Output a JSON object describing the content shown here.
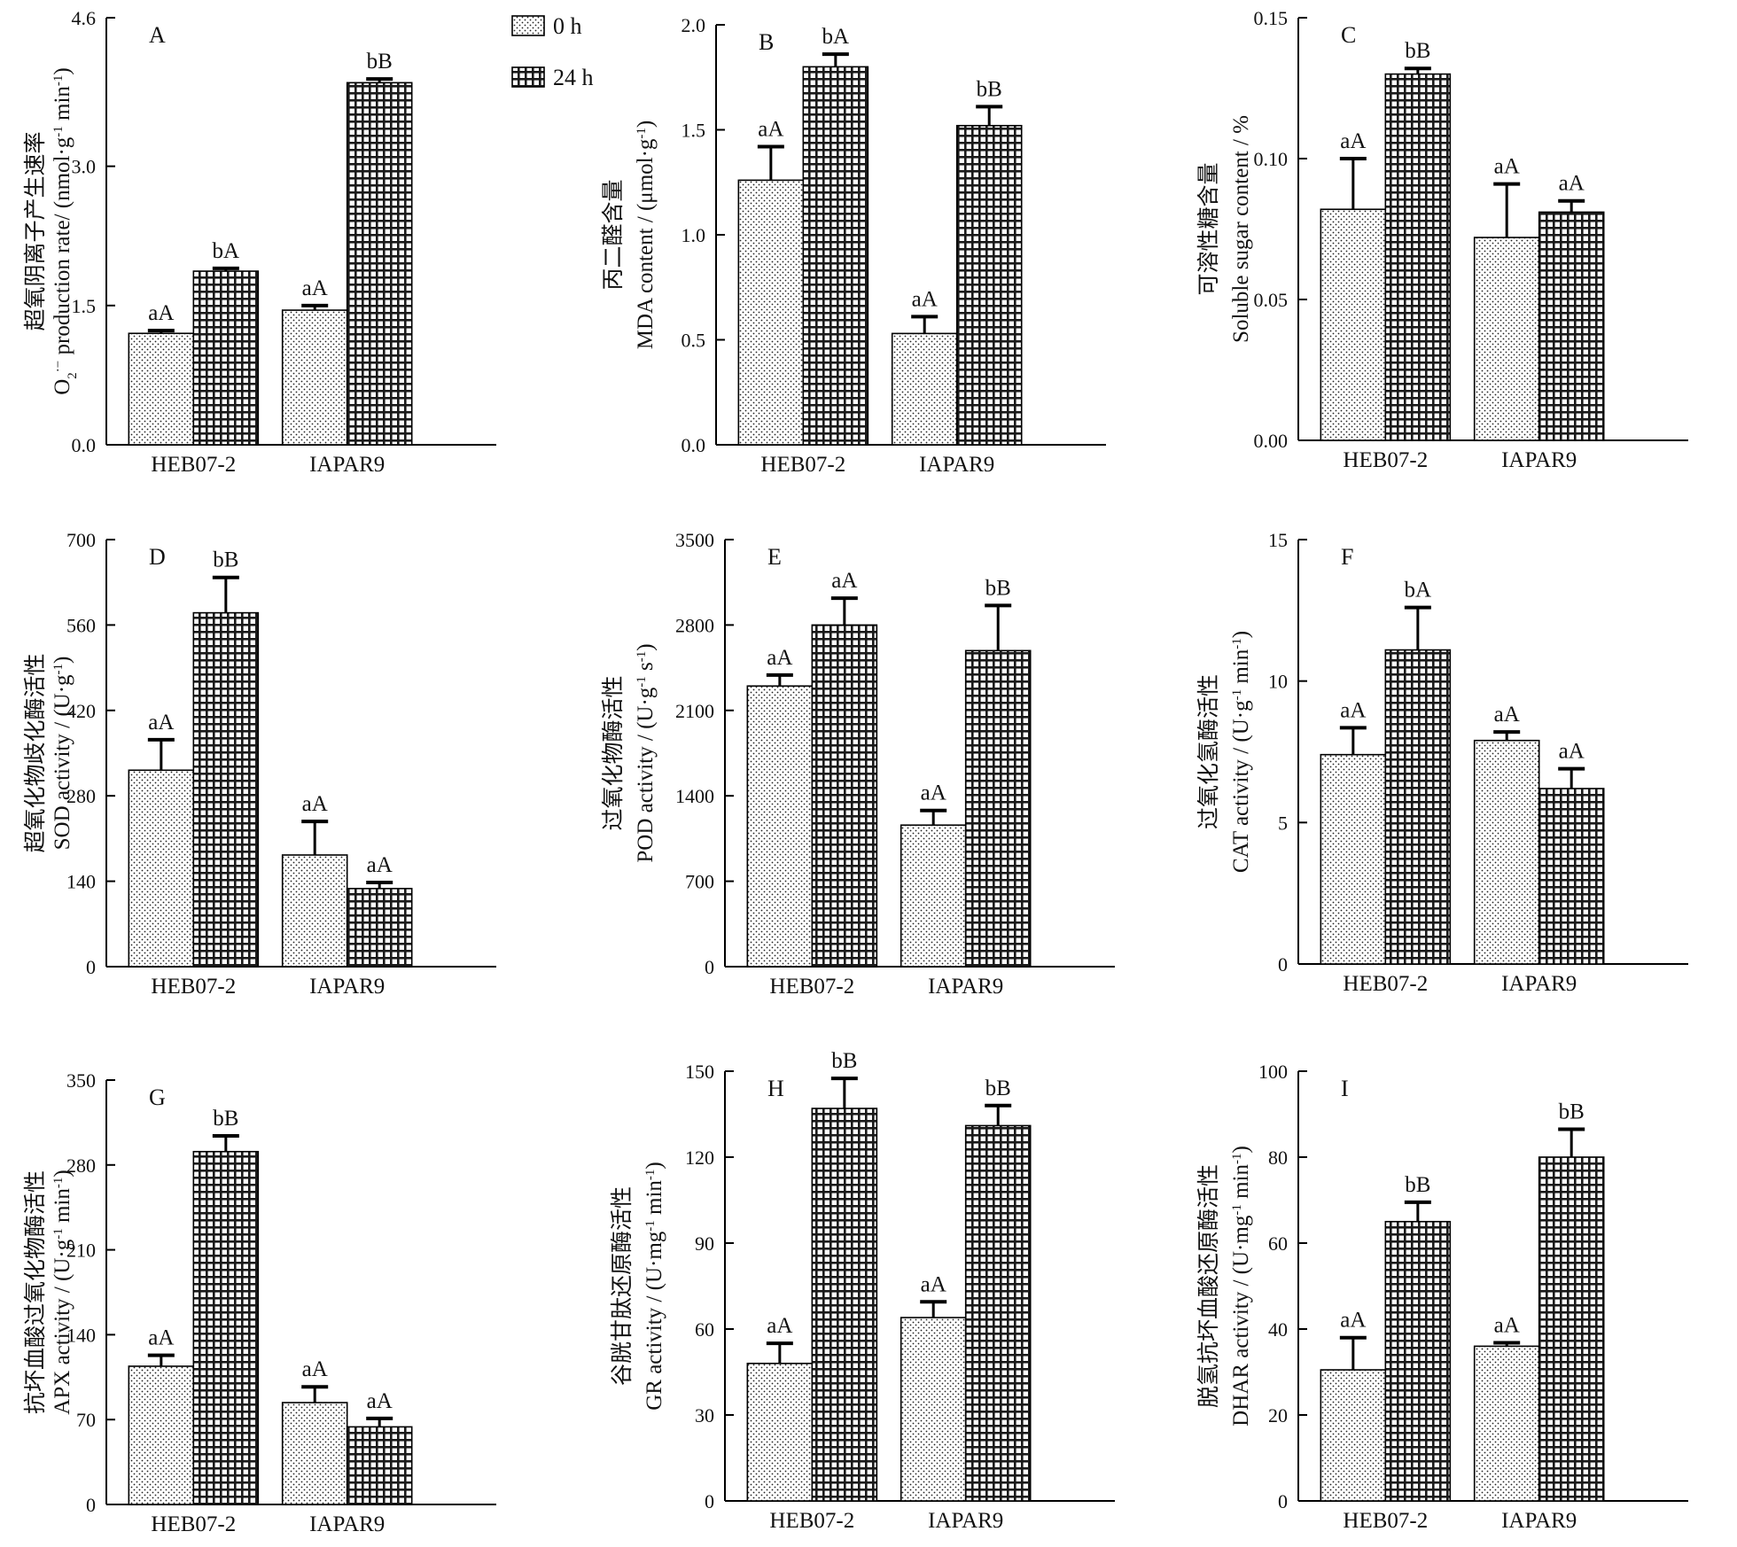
{
  "legend": {
    "items": [
      {
        "label": "0 h",
        "pattern": "dots"
      },
      {
        "label": "24 h",
        "pattern": "grid"
      }
    ]
  },
  "chart_data": [
    {
      "type": "bar",
      "panel_letter": "A",
      "ylabel_cn": "超氧阴离子产生速率",
      "ylabel_en_parts": [
        {
          "t": "O"
        },
        {
          "t": "2",
          "s": "sub"
        },
        {
          "t": "·−",
          "s": "sup"
        },
        {
          "t": " production rate/ (nmol·g"
        },
        {
          "t": "-1",
          "s": "sup"
        },
        {
          "t": " min"
        },
        {
          "t": "-1",
          "s": "sup"
        },
        {
          "t": ")"
        }
      ],
      "ylim": [
        0,
        4.6
      ],
      "ticks": [
        0,
        1.5,
        3.0,
        4.6
      ],
      "tick_labels": [
        "0.0",
        "1.5",
        "3.0",
        "4.6"
      ],
      "categories": [
        "HEB07-2",
        "IAPAR9"
      ],
      "series": [
        {
          "name": "0 h",
          "values": [
            1.2,
            1.45
          ],
          "errors": [
            0.03,
            0.05
          ],
          "letters": [
            "aA",
            "aA"
          ]
        },
        {
          "name": "24 h",
          "values": [
            1.87,
            3.9
          ],
          "errors": [
            0.03,
            0.04
          ],
          "letters": [
            "bA",
            "bB"
          ]
        }
      ]
    },
    {
      "type": "bar",
      "panel_letter": "B",
      "ylabel_cn": "丙二醛含量",
      "ylabel_en_parts": [
        {
          "t": "MDA content / (μmol·g"
        },
        {
          "t": "-1",
          "s": "sup"
        },
        {
          "t": ")"
        }
      ],
      "ylim": [
        0,
        2.0
      ],
      "ticks": [
        0,
        0.5,
        1.0,
        1.5,
        2.0
      ],
      "tick_labels": [
        "0.0",
        "0.5",
        "1.0",
        "1.5",
        "2.0"
      ],
      "categories": [
        "HEB07-2",
        "IAPAR9"
      ],
      "series": [
        {
          "name": "0 h",
          "values": [
            1.26,
            0.53
          ],
          "errors": [
            0.16,
            0.08
          ],
          "letters": [
            "aA",
            "aA"
          ]
        },
        {
          "name": "24 h",
          "values": [
            1.8,
            1.52
          ],
          "errors": [
            0.06,
            0.09
          ],
          "letters": [
            "bA",
            "bB"
          ]
        }
      ]
    },
    {
      "type": "bar",
      "panel_letter": "C",
      "ylabel_cn": "可溶性糖含量",
      "ylabel_en_parts": [
        {
          "t": "Soluble sugar content  / %"
        }
      ],
      "ylim": [
        0,
        0.15
      ],
      "ticks": [
        0,
        0.05,
        0.1,
        0.15
      ],
      "tick_labels": [
        "0.00",
        "0.05",
        "0.10",
        "0.15"
      ],
      "categories": [
        "HEB07-2",
        "IAPAR9"
      ],
      "series": [
        {
          "name": "0 h",
          "values": [
            0.082,
            0.072
          ],
          "errors": [
            0.018,
            0.019
          ],
          "letters": [
            "aA",
            "aA"
          ]
        },
        {
          "name": "24 h",
          "values": [
            0.13,
            0.081
          ],
          "errors": [
            0.002,
            0.004
          ],
          "letters": [
            "bB",
            "aA"
          ]
        }
      ]
    },
    {
      "type": "bar",
      "panel_letter": "D",
      "ylabel_cn": "超氧化物歧化酶活性",
      "ylabel_en_parts": [
        {
          "t": "SOD activity / (U·g"
        },
        {
          "t": "-1",
          "s": "sup"
        },
        {
          "t": ")"
        }
      ],
      "ylim": [
        0,
        700
      ],
      "ticks": [
        0,
        140,
        280,
        420,
        560,
        700
      ],
      "tick_labels": [
        "0",
        "140",
        "280",
        "420",
        "560",
        "700"
      ],
      "categories": [
        "HEB07-2",
        "IAPAR9"
      ],
      "series": [
        {
          "name": "0 h",
          "values": [
            322,
            183
          ],
          "errors": [
            50,
            55
          ],
          "letters": [
            "aA",
            "aA"
          ]
        },
        {
          "name": "24 h",
          "values": [
            580,
            128
          ],
          "errors": [
            58,
            10
          ],
          "letters": [
            "bB",
            "aA"
          ]
        }
      ]
    },
    {
      "type": "bar",
      "panel_letter": "E",
      "ylabel_cn": "过氧化物酶活性",
      "ylabel_en_parts": [
        {
          "t": "POD activity / (U·g"
        },
        {
          "t": "-1",
          "s": "sup"
        },
        {
          "t": " s"
        },
        {
          "t": "-1",
          "s": "sup"
        },
        {
          "t": ")"
        }
      ],
      "ylim": [
        0,
        3500
      ],
      "ticks": [
        0,
        700,
        1400,
        2100,
        2800,
        3500
      ],
      "tick_labels": [
        "0",
        "700",
        "1400",
        "2100",
        "2800",
        "3500"
      ],
      "categories": [
        "HEB07-2",
        "IAPAR9"
      ],
      "series": [
        {
          "name": "0 h",
          "values": [
            2300,
            1160
          ],
          "errors": [
            90,
            120
          ],
          "letters": [
            "aA",
            "aA"
          ]
        },
        {
          "name": "24 h",
          "values": [
            2800,
            2590
          ],
          "errors": [
            220,
            370
          ],
          "letters": [
            "aA",
            "bB"
          ]
        }
      ]
    },
    {
      "type": "bar",
      "panel_letter": "F",
      "ylabel_cn": "过氧化氢酶活性",
      "ylabel_en_parts": [
        {
          "t": "CAT activity / (U·g"
        },
        {
          "t": "-1",
          "s": "sup"
        },
        {
          "t": " min"
        },
        {
          "t": "-1",
          "s": "sup"
        },
        {
          "t": ")"
        }
      ],
      "ylim": [
        0,
        15
      ],
      "ticks": [
        0,
        5,
        10,
        15
      ],
      "tick_labels": [
        "0",
        "5",
        "10",
        "15"
      ],
      "categories": [
        "HEB07-2",
        "IAPAR9"
      ],
      "series": [
        {
          "name": "0 h",
          "values": [
            7.4,
            7.9
          ],
          "errors": [
            0.95,
            0.3
          ],
          "letters": [
            "aA",
            "aA"
          ]
        },
        {
          "name": "24 h",
          "values": [
            11.1,
            6.2
          ],
          "errors": [
            1.5,
            0.7
          ],
          "letters": [
            "bA",
            "aA"
          ]
        }
      ]
    },
    {
      "type": "bar",
      "panel_letter": "G",
      "ylabel_cn": "抗坏血酸过氧化物酶活性",
      "ylabel_en_parts": [
        {
          "t": "APX activity / (U·g"
        },
        {
          "t": "-1",
          "s": "sup"
        },
        {
          "t": " min"
        },
        {
          "t": "-1",
          "s": "sup"
        },
        {
          "t": ")"
        }
      ],
      "ylim": [
        0,
        350
      ],
      "ticks": [
        0,
        70,
        140,
        210,
        280,
        350
      ],
      "tick_labels": [
        "0",
        "70",
        "140",
        "210",
        "280",
        "350"
      ],
      "categories": [
        "HEB07-2",
        "IAPAR9"
      ],
      "series": [
        {
          "name": "0 h",
          "values": [
            114,
            84
          ],
          "errors": [
            9,
            13
          ],
          "letters": [
            "aA",
            "aA"
          ]
        },
        {
          "name": "24 h",
          "values": [
            291,
            64
          ],
          "errors": [
            13,
            7
          ],
          "letters": [
            "bB",
            "aA"
          ]
        }
      ]
    },
    {
      "type": "bar",
      "panel_letter": "H",
      "ylabel_cn": "谷胱甘肽还原酶活性",
      "ylabel_en_parts": [
        {
          "t": "GR activity / (U·mg"
        },
        {
          "t": "-1",
          "s": "sup"
        },
        {
          "t": " min"
        },
        {
          "t": "-1",
          "s": "sup"
        },
        {
          "t": ")"
        }
      ],
      "ylim": [
        0,
        150
      ],
      "ticks": [
        0,
        30,
        60,
        90,
        120,
        150
      ],
      "tick_labels": [
        "0",
        "30",
        "60",
        "90",
        "120",
        "150"
      ],
      "categories": [
        "HEB07-2",
        "IAPAR9"
      ],
      "series": [
        {
          "name": "0 h",
          "values": [
            48,
            64
          ],
          "errors": [
            7,
            5.5
          ],
          "letters": [
            "aA",
            "aA"
          ]
        },
        {
          "name": "24 h",
          "values": [
            137,
            131
          ],
          "errors": [
            10.5,
            7
          ],
          "letters": [
            "bB",
            "bB"
          ]
        }
      ]
    },
    {
      "type": "bar",
      "panel_letter": "I",
      "ylabel_cn": "脱氢抗坏血酸还原酶活性",
      "ylabel_en_parts": [
        {
          "t": "DHAR activity / (U·mg"
        },
        {
          "t": "-1",
          "s": "sup"
        },
        {
          "t": " min"
        },
        {
          "t": "-1",
          "s": "sup"
        },
        {
          "t": ")"
        }
      ],
      "ylim": [
        0,
        100
      ],
      "ticks": [
        0,
        20,
        40,
        60,
        80,
        100
      ],
      "tick_labels": [
        "0",
        "20",
        "40",
        "60",
        "80",
        "100"
      ],
      "categories": [
        "HEB07-2",
        "IAPAR9"
      ],
      "series": [
        {
          "name": "0 h",
          "values": [
            30.5,
            36
          ],
          "errors": [
            7.5,
            0.8
          ],
          "letters": [
            "aA",
            "aA"
          ]
        },
        {
          "name": "24 h",
          "values": [
            65,
            80
          ],
          "errors": [
            4.5,
            6.5
          ],
          "letters": [
            "bB",
            "bB"
          ]
        }
      ]
    }
  ]
}
